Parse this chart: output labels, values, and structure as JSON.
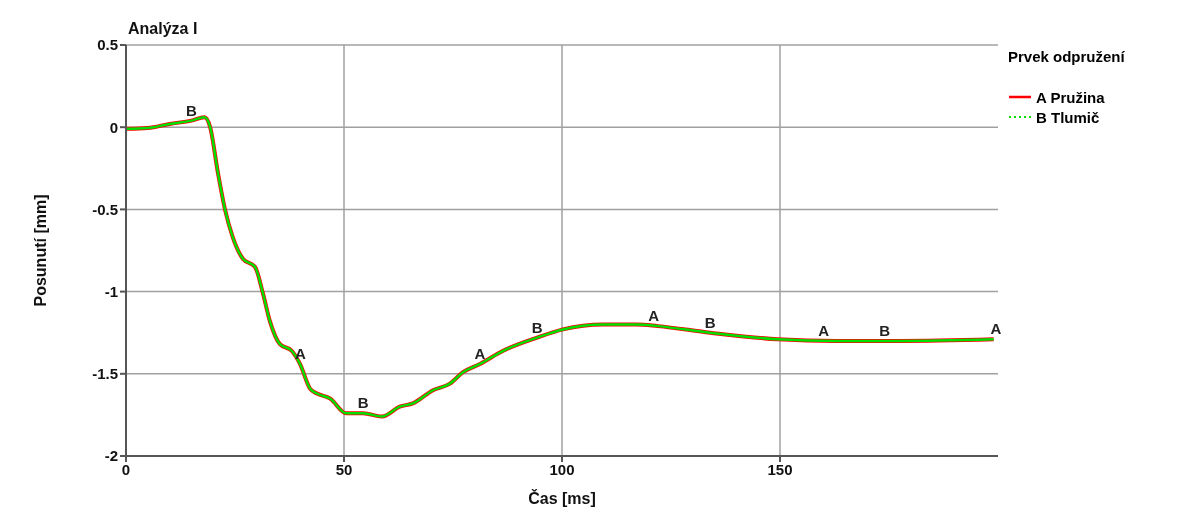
{
  "chart_data": {
    "type": "line",
    "title": "Analýza I",
    "xlabel": "Čas [ms]",
    "ylabel": "Posunutí [mm]",
    "legend_title": "Prvek odpružení",
    "xlim": [
      0,
      200
    ],
    "xticks": [
      0,
      50,
      100,
      150
    ],
    "ylim": [
      -2,
      0.5
    ],
    "yticks": [
      {
        "value": 0.5,
        "label": "0.5"
      },
      0,
      -0.5,
      -1,
      -1.5,
      -2
    ],
    "grid": true,
    "legend": "top right",
    "marker": "none",
    "line_style": "solid",
    "x": [
      0,
      5,
      10,
      15,
      18,
      19.3,
      21.1,
      22.7,
      24.5,
      26.8,
      29.6,
      31.4,
      33,
      35.3,
      38,
      39.9,
      42.2,
      43.8,
      46.8,
      50.5,
      54.4,
      58.7,
      62.8,
      65.8,
      70.4,
      74.3,
      77.3,
      81.2,
      86.5,
      94.3,
      100.2,
      109.4,
      117.2,
      122,
      134,
      149.5,
      163,
      177.5,
      199
    ],
    "series": [
      {
        "name": "A Pružina",
        "color": "#ff0000",
        "values": [
          -0.01,
          -0.005,
          0.02,
          0.04,
          0.06,
          0,
          -0.28,
          -0.5,
          -0.67,
          -0.8,
          -0.85,
          -1.01,
          -1.18,
          -1.32,
          -1.36,
          -1.44,
          -1.59,
          -1.62,
          -1.65,
          -1.74,
          -1.74,
          -1.76,
          -1.7,
          -1.68,
          -1.6,
          -1.56,
          -1.49,
          -1.44,
          -1.36,
          -1.28,
          -1.23,
          -1.2,
          -1.2,
          -1.21,
          -1.25,
          -1.29,
          -1.3,
          -1.3,
          -1.29
        ]
      },
      {
        "name": "B Tlumič",
        "color": "#00e000",
        "values": [
          -0.01,
          -0.005,
          0.02,
          0.04,
          0.06,
          0,
          -0.28,
          -0.5,
          -0.67,
          -0.8,
          -0.85,
          -1.01,
          -1.18,
          -1.32,
          -1.36,
          -1.44,
          -1.59,
          -1.62,
          -1.65,
          -1.74,
          -1.74,
          -1.76,
          -1.7,
          -1.68,
          -1.6,
          -1.56,
          -1.49,
          -1.44,
          -1.36,
          -1.28,
          -1.23,
          -1.2,
          -1.2,
          -1.21,
          -1.25,
          -1.29,
          -1.3,
          -1.3,
          -1.29
        ]
      }
    ],
    "annotations": [
      {
        "text": "B",
        "x": 15,
        "y": 0.04
      },
      {
        "text": "A",
        "x": 40,
        "y": -1.44
      },
      {
        "text": "B",
        "x": 54.4,
        "y": -1.74
      },
      {
        "text": "A",
        "x": 81.2,
        "y": -1.44
      },
      {
        "text": "B",
        "x": 94.3,
        "y": -1.28
      },
      {
        "text": "A",
        "x": 121,
        "y": -1.21
      },
      {
        "text": "B",
        "x": 134,
        "y": -1.25
      },
      {
        "text": "A",
        "x": 160,
        "y": -1.3
      },
      {
        "text": "B",
        "x": 174,
        "y": -1.3
      },
      {
        "text": "A",
        "x": 199.5,
        "y": -1.29
      }
    ]
  }
}
